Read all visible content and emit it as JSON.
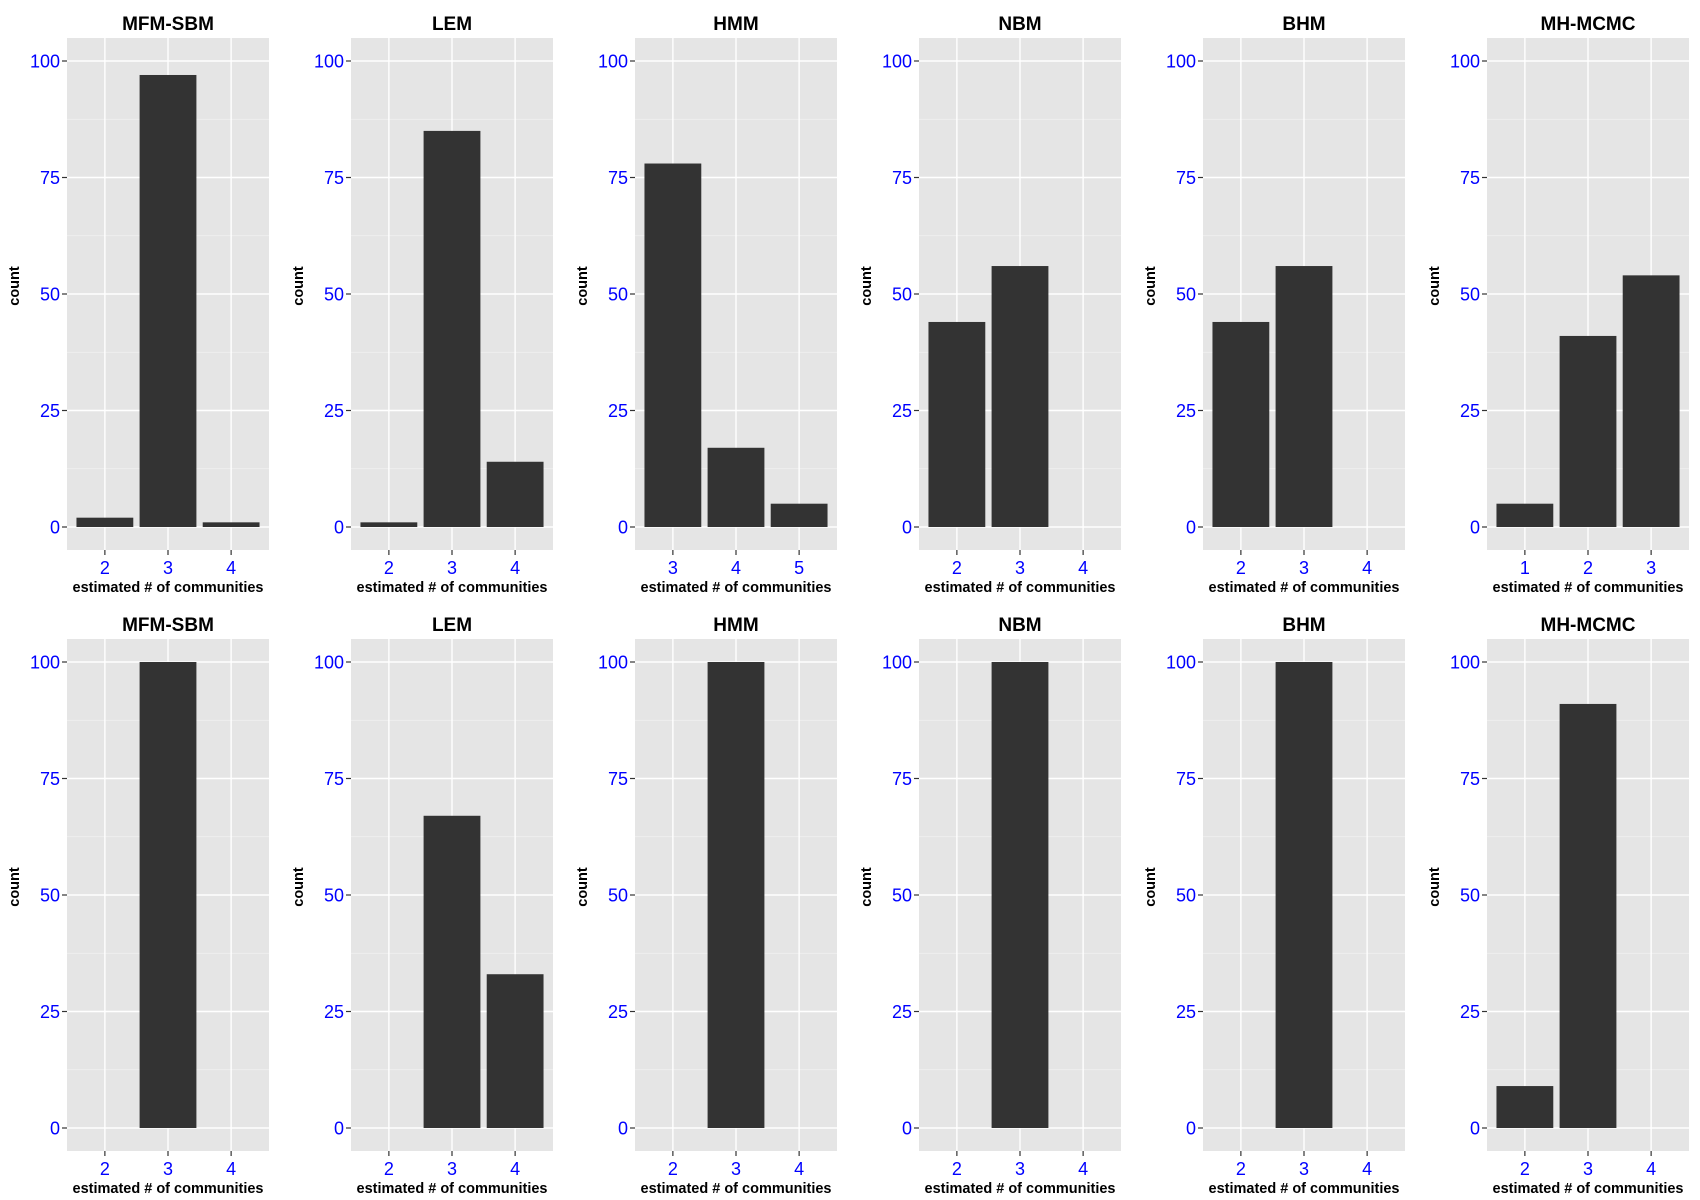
{
  "style": {
    "panel_background": "#e5e5e5",
    "grid_major": "#ffffff",
    "grid_minor": "#f2f2f2",
    "bar_fill": "#333333",
    "tick_label_color": "#0000ff",
    "tick_mark_color": "#333333",
    "axis_title_color": "#000000"
  },
  "chart_data": [
    {
      "type": "bar",
      "title": "MFM-SBM",
      "xlabel": "estimated # of communities",
      "ylabel": "count",
      "ylim": [
        0,
        100
      ],
      "yticks": [
        0,
        25,
        50,
        75,
        100
      ],
      "categories": [
        "2",
        "3",
        "4"
      ],
      "values": [
        2,
        97,
        1
      ]
    },
    {
      "type": "bar",
      "title": "LEM",
      "xlabel": "estimated # of communities",
      "ylabel": "count",
      "ylim": [
        0,
        100
      ],
      "yticks": [
        0,
        25,
        50,
        75,
        100
      ],
      "categories": [
        "2",
        "3",
        "4"
      ],
      "values": [
        1,
        85,
        14
      ]
    },
    {
      "type": "bar",
      "title": "HMM",
      "xlabel": "estimated # of communities",
      "ylabel": "count",
      "ylim": [
        0,
        100
      ],
      "yticks": [
        0,
        25,
        50,
        75,
        100
      ],
      "categories": [
        "3",
        "4",
        "5"
      ],
      "values": [
        78,
        17,
        5
      ]
    },
    {
      "type": "bar",
      "title": "NBM",
      "xlabel": "estimated # of communities",
      "ylabel": "count",
      "ylim": [
        0,
        100
      ],
      "yticks": [
        0,
        25,
        50,
        75,
        100
      ],
      "categories": [
        "2",
        "3",
        "4"
      ],
      "values": [
        44,
        56,
        0
      ]
    },
    {
      "type": "bar",
      "title": "BHM",
      "xlabel": "estimated # of communities",
      "ylabel": "count",
      "ylim": [
        0,
        100
      ],
      "yticks": [
        0,
        25,
        50,
        75,
        100
      ],
      "categories": [
        "2",
        "3",
        "4"
      ],
      "values": [
        44,
        56,
        0
      ]
    },
    {
      "type": "bar",
      "title": "MH-MCMC",
      "xlabel": "estimated # of communities",
      "ylabel": "count",
      "ylim": [
        0,
        100
      ],
      "yticks": [
        0,
        25,
        50,
        75,
        100
      ],
      "categories": [
        "1",
        "2",
        "3"
      ],
      "values": [
        5,
        41,
        54
      ]
    },
    {
      "type": "bar",
      "title": "MFM-SBM",
      "xlabel": "estimated # of communities",
      "ylabel": "count",
      "ylim": [
        0,
        100
      ],
      "yticks": [
        0,
        25,
        50,
        75,
        100
      ],
      "categories": [
        "2",
        "3",
        "4"
      ],
      "values": [
        0,
        100,
        0
      ]
    },
    {
      "type": "bar",
      "title": "LEM",
      "xlabel": "estimated # of communities",
      "ylabel": "count",
      "ylim": [
        0,
        100
      ],
      "yticks": [
        0,
        25,
        50,
        75,
        100
      ],
      "categories": [
        "2",
        "3",
        "4"
      ],
      "values": [
        0,
        67,
        33
      ]
    },
    {
      "type": "bar",
      "title": "HMM",
      "xlabel": "estimated # of communities",
      "ylabel": "count",
      "ylim": [
        0,
        100
      ],
      "yticks": [
        0,
        25,
        50,
        75,
        100
      ],
      "categories": [
        "2",
        "3",
        "4"
      ],
      "values": [
        0,
        100,
        0
      ]
    },
    {
      "type": "bar",
      "title": "NBM",
      "xlabel": "estimated # of communities",
      "ylabel": "count",
      "ylim": [
        0,
        100
      ],
      "yticks": [
        0,
        25,
        50,
        75,
        100
      ],
      "categories": [
        "2",
        "3",
        "4"
      ],
      "values": [
        0,
        100,
        0
      ]
    },
    {
      "type": "bar",
      "title": "BHM",
      "xlabel": "estimated # of communities",
      "ylabel": "count",
      "ylim": [
        0,
        100
      ],
      "yticks": [
        0,
        25,
        50,
        75,
        100
      ],
      "categories": [
        "2",
        "3",
        "4"
      ],
      "values": [
        0,
        100,
        0
      ]
    },
    {
      "type": "bar",
      "title": "MH-MCMC",
      "xlabel": "estimated # of communities",
      "ylabel": "count",
      "ylim": [
        0,
        100
      ],
      "yticks": [
        0,
        25,
        50,
        75,
        100
      ],
      "categories": [
        "2",
        "3",
        "4"
      ],
      "values": [
        9,
        91,
        0
      ]
    }
  ]
}
